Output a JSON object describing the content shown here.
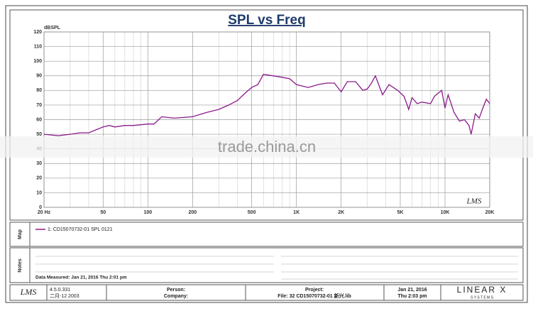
{
  "chart_data": {
    "type": "line",
    "title": "SPL vs Freq",
    "y_label": "dBSPL",
    "logo": "LMS",
    "xscale": "log",
    "grid": true,
    "xlim": [
      20,
      20000
    ],
    "ylim": [
      0,
      120
    ],
    "xticks": [
      {
        "value": 20,
        "label": "20 Hz"
      },
      50,
      100,
      200,
      500,
      {
        "value": 1000,
        "label": "1K"
      },
      {
        "value": 2000,
        "label": "2K"
      },
      {
        "value": 5000,
        "label": "5K"
      },
      {
        "value": 10000,
        "label": "10K"
      },
      {
        "value": 20000,
        "label": "20K"
      }
    ],
    "x_minor_grid": [
      30,
      40,
      60,
      70,
      80,
      90,
      300,
      400,
      600,
      700,
      800,
      900,
      3000,
      4000,
      6000,
      7000,
      8000,
      9000
    ],
    "yticks": [
      0,
      10,
      20,
      30,
      40,
      50,
      60,
      70,
      80,
      90,
      100,
      110,
      120
    ],
    "x": [
      20,
      25,
      30,
      35,
      40,
      50,
      55,
      60,
      70,
      80,
      100,
      110,
      124,
      150,
      200,
      250,
      300,
      350,
      400,
      450,
      500,
      550,
      600,
      700,
      800,
      900,
      1000,
      1200,
      1400,
      1600,
      1800,
      2000,
      2200,
      2500,
      2800,
      3000,
      3200,
      3400,
      3800,
      4200,
      4800,
      5300,
      5700,
      6000,
      6500,
      7000,
      8000,
      8500,
      9500,
      10000,
      10500,
      11500,
      12500,
      13500,
      14500,
      15000,
      16000,
      17000,
      18000,
      19000,
      20000
    ],
    "series": [
      {
        "name": "1: CD15070732-01  SPL  0121",
        "color": "#8b1a8b",
        "values": [
          50,
          49,
          50,
          51,
          51,
          55,
          56,
          55,
          56,
          56,
          57,
          57,
          62,
          61,
          62,
          65,
          67,
          70,
          73,
          78,
          82,
          84,
          91,
          90,
          89,
          88,
          84,
          82,
          84,
          85,
          85,
          79,
          86,
          86,
          80,
          81,
          85,
          90,
          77,
          84,
          80,
          76,
          67,
          75,
          71,
          72,
          71,
          76,
          80,
          68,
          77,
          65,
          59,
          60,
          56,
          50,
          64,
          61,
          68,
          74,
          71
        ]
      }
    ]
  },
  "watermark": "trade.china.cn",
  "map_panel": {
    "label": "Map"
  },
  "notes_panel": {
    "label": "Notes",
    "measured": "Data Measured: Jan 21, 2016  Thu  2:01 pm"
  },
  "footer": {
    "logo": "LMS",
    "version": "4.5.0.331",
    "build": "二月-12 2003",
    "person": "Person:",
    "company": "Company:",
    "project": "Project:",
    "file": "File: 32 CD15070732-01 新兴.lib",
    "date": "Jan 21, 2016",
    "time": "Thu  2:03 pm",
    "brand": "LINEAR X",
    "brand_sub": "S Y S T E M S"
  }
}
